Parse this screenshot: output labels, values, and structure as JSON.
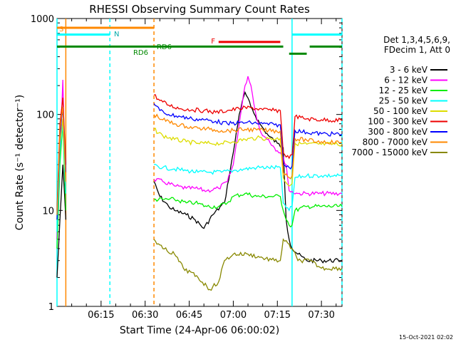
{
  "chart_data": {
    "type": "line",
    "title": "RHESSI Observing Summary Count Rates",
    "xlabel": "Start Time (24-Apr-06 06:00:02)",
    "ylabel": "Count Rate (s⁻¹ detector⁻¹)",
    "y_scale": "log",
    "ylim": [
      1,
      1000
    ],
    "xlim": [
      "06:00",
      "07:37"
    ],
    "x_ticks": [
      "06:15",
      "06:30",
      "06:45",
      "07:00",
      "07:15",
      "07:30"
    ],
    "y_ticks": [
      "1",
      "10",
      "100",
      "1000"
    ],
    "timestamp": "15-Oct-2021 02:02",
    "legend": {
      "placement": "right",
      "header": [
        "Det 1,3,4,5,6,9,",
        "FDecim 1, Att 0"
      ],
      "entries": [
        {
          "label": "3 - 6 keV",
          "color": "#000000"
        },
        {
          "label": "6 - 12 keV",
          "color": "#ff00ff"
        },
        {
          "label": "12 - 25 keV",
          "color": "#00ee00"
        },
        {
          "label": "25 - 50 keV",
          "color": "#00ffff"
        },
        {
          "label": "50 - 100 keV",
          "color": "#dddd00"
        },
        {
          "label": "100 - 300 keV",
          "color": "#ee0000"
        },
        {
          "label": "300 - 800 keV",
          "color": "#0000ff"
        },
        {
          "label": "800 - 7000 keV",
          "color": "#ff8800"
        },
        {
          "label": "7000 - 15000 keV",
          "color": "#888800"
        }
      ]
    },
    "flags": [
      {
        "label": "S",
        "color": "#ff8800",
        "start": "06:00",
        "end": "06:33",
        "level": 800
      },
      {
        "label": "N",
        "color": "#00ffff",
        "start": "06:00",
        "end": "06:18",
        "level": 680
      },
      {
        "label": "N",
        "color": "#00ffff",
        "start": "07:20",
        "end": "07:37",
        "level": 680
      },
      {
        "label": "F",
        "color": "#ee0000",
        "start": "06:55",
        "end": "07:16",
        "level": 570
      },
      {
        "label": "RD6",
        "color": "#008800",
        "start": "06:00",
        "end": "07:17",
        "level": 510
      },
      {
        "label": "",
        "color": "#008800",
        "start": "07:19",
        "end": "07:25",
        "level": 430
      },
      {
        "label": "",
        "color": "#008800",
        "start": "07:26",
        "end": "07:37",
        "level": 510
      }
    ],
    "flag_text": [
      "S",
      "N",
      "F",
      "RD6",
      "RD6"
    ],
    "vlines": [
      {
        "t": "06:00",
        "color": "#00ffff",
        "style": "solid"
      },
      {
        "t": "06:03",
        "color": "#ff8800",
        "style": "solid"
      },
      {
        "t": "06:18",
        "color": "#00ffff",
        "style": "dashed"
      },
      {
        "t": "06:33",
        "color": "#ff8800",
        "style": "dashed"
      },
      {
        "t": "07:20",
        "color": "#00ffff",
        "style": "solid"
      },
      {
        "t": "07:37",
        "color": "#00ffff",
        "style": "dashed"
      }
    ],
    "series": [
      {
        "name": "3 - 6 keV",
        "color": "#000000",
        "points": [
          [
            "06:00",
            2
          ],
          [
            "06:01",
            8
          ],
          [
            "06:02",
            30
          ],
          [
            "06:03",
            8
          ],
          [
            "06:33",
            null
          ],
          [
            "06:33",
            20
          ],
          [
            "06:35",
            14
          ],
          [
            "06:38",
            11
          ],
          [
            "06:40",
            10
          ],
          [
            "06:44",
            9
          ],
          [
            "06:47",
            8
          ],
          [
            "06:50",
            6.5
          ],
          [
            "06:53",
            9
          ],
          [
            "06:57",
            12
          ],
          [
            "07:00",
            40
          ],
          [
            "07:02",
            100
          ],
          [
            "07:04",
            170
          ],
          [
            "07:06",
            120
          ],
          [
            "07:09",
            80
          ],
          [
            "07:12",
            60
          ],
          [
            "07:15",
            50
          ],
          [
            "07:17",
            45
          ],
          [
            "07:18",
            8
          ],
          [
            "07:19",
            5
          ],
          [
            "07:20",
            4
          ],
          [
            "07:22",
            3.5
          ],
          [
            "07:25",
            3
          ],
          [
            "07:30",
            3
          ],
          [
            "07:37",
            3
          ]
        ]
      },
      {
        "name": "6 - 12 keV",
        "color": "#ff00ff",
        "points": [
          [
            "06:00",
            5
          ],
          [
            "06:01",
            40
          ],
          [
            "06:02",
            230
          ],
          [
            "06:03",
            10
          ],
          [
            "06:33",
            null
          ],
          [
            "06:33",
            21
          ],
          [
            "06:36",
            20
          ],
          [
            "06:40",
            18
          ],
          [
            "06:44",
            17
          ],
          [
            "06:47",
            17
          ],
          [
            "06:51",
            16
          ],
          [
            "06:55",
            17
          ],
          [
            "06:58",
            20
          ],
          [
            "07:00",
            30
          ],
          [
            "07:02",
            80
          ],
          [
            "07:04",
            200
          ],
          [
            "07:05",
            250
          ],
          [
            "07:06",
            200
          ],
          [
            "07:08",
            90
          ],
          [
            "07:10",
            60
          ],
          [
            "07:12",
            55
          ],
          [
            "07:14",
            45
          ],
          [
            "07:16",
            40
          ],
          [
            "07:18",
            30
          ],
          [
            "07:19",
            16
          ],
          [
            "07:22",
            15
          ],
          [
            "07:25",
            15
          ],
          [
            "07:30",
            15
          ],
          [
            "07:37",
            15
          ]
        ]
      },
      {
        "name": "12 - 25 keV",
        "color": "#00ee00",
        "points": [
          [
            "06:00",
            4
          ],
          [
            "06:01",
            30
          ],
          [
            "06:02",
            80
          ],
          [
            "06:03",
            10
          ],
          [
            "06:33",
            null
          ],
          [
            "06:33",
            13
          ],
          [
            "06:36",
            13
          ],
          [
            "06:40",
            13
          ],
          [
            "06:44",
            12
          ],
          [
            "06:47",
            12
          ],
          [
            "06:51",
            11
          ],
          [
            "06:55",
            11
          ],
          [
            "06:58",
            12
          ],
          [
            "07:00",
            14
          ],
          [
            "07:04",
            15
          ],
          [
            "07:08",
            14
          ],
          [
            "07:12",
            14
          ],
          [
            "07:16",
            14
          ],
          [
            "07:17",
            10
          ],
          [
            "07:19",
            7
          ],
          [
            "07:20",
            7
          ],
          [
            "07:21",
            10
          ],
          [
            "07:25",
            11
          ],
          [
            "07:30",
            11
          ],
          [
            "07:37",
            11
          ]
        ]
      },
      {
        "name": "25 - 50 keV",
        "color": "#00ffff",
        "points": [
          [
            "06:00",
            6
          ],
          [
            "06:01",
            40
          ],
          [
            "06:02",
            80
          ],
          [
            "06:03",
            15
          ],
          [
            "06:33",
            null
          ],
          [
            "06:33",
            30
          ],
          [
            "06:36",
            28
          ],
          [
            "06:40",
            27
          ],
          [
            "06:44",
            26
          ],
          [
            "06:48",
            25
          ],
          [
            "06:52",
            25
          ],
          [
            "06:56",
            25
          ],
          [
            "07:00",
            26
          ],
          [
            "07:04",
            27
          ],
          [
            "07:08",
            28
          ],
          [
            "07:12",
            28
          ],
          [
            "07:16",
            28
          ],
          [
            "07:17",
            12
          ],
          [
            "07:19",
            10
          ],
          [
            "07:20",
            11
          ],
          [
            "07:21",
            22
          ],
          [
            "07:25",
            23
          ],
          [
            "07:30",
            23
          ],
          [
            "07:37",
            23
          ]
        ]
      },
      {
        "name": "50 - 100 keV",
        "color": "#dddd00",
        "points": [
          [
            "06:00",
            8
          ],
          [
            "06:01",
            50
          ],
          [
            "06:02",
            90
          ],
          [
            "06:03",
            20
          ],
          [
            "06:33",
            null
          ],
          [
            "06:33",
            70
          ],
          [
            "06:36",
            60
          ],
          [
            "06:40",
            55
          ],
          [
            "06:44",
            52
          ],
          [
            "06:48",
            50
          ],
          [
            "06:52",
            50
          ],
          [
            "06:56",
            50
          ],
          [
            "07:00",
            52
          ],
          [
            "07:04",
            55
          ],
          [
            "07:08",
            57
          ],
          [
            "07:12",
            56
          ],
          [
            "07:16",
            56
          ],
          [
            "07:17",
            22
          ],
          [
            "07:19",
            18
          ],
          [
            "07:20",
            19
          ],
          [
            "07:21",
            50
          ],
          [
            "07:25",
            49
          ],
          [
            "07:30",
            49
          ],
          [
            "07:37",
            49
          ]
        ]
      },
      {
        "name": "100 - 300 keV",
        "color": "#ee0000",
        "points": [
          [
            "06:00",
            10
          ],
          [
            "06:01",
            80
          ],
          [
            "06:02",
            150
          ],
          [
            "06:03",
            30
          ],
          [
            "06:33",
            null
          ],
          [
            "06:33",
            160
          ],
          [
            "06:35",
            140
          ],
          [
            "06:38",
            125
          ],
          [
            "06:42",
            115
          ],
          [
            "06:46",
            112
          ],
          [
            "06:50",
            110
          ],
          [
            "06:54",
            105
          ],
          [
            "06:58",
            110
          ],
          [
            "07:02",
            115
          ],
          [
            "07:06",
            118
          ],
          [
            "07:10",
            112
          ],
          [
            "07:14",
            110
          ],
          [
            "07:16",
            110
          ],
          [
            "07:17",
            40
          ],
          [
            "07:19",
            35
          ],
          [
            "07:20",
            38
          ],
          [
            "07:21",
            95
          ],
          [
            "07:25",
            90
          ],
          [
            "07:30",
            88
          ],
          [
            "07:37",
            87
          ]
        ]
      },
      {
        "name": "300 - 800 keV",
        "color": "#0000ff",
        "points": [
          [
            "06:00",
            8
          ],
          [
            "06:01",
            60
          ],
          [
            "06:02",
            120
          ],
          [
            "06:03",
            25
          ],
          [
            "06:33",
            null
          ],
          [
            "06:33",
            130
          ],
          [
            "06:35",
            110
          ],
          [
            "06:38",
            100
          ],
          [
            "06:42",
            95
          ],
          [
            "06:46",
            90
          ],
          [
            "06:50",
            88
          ],
          [
            "06:54",
            85
          ],
          [
            "06:58",
            80
          ],
          [
            "07:02",
            82
          ],
          [
            "07:06",
            82
          ],
          [
            "07:10",
            80
          ],
          [
            "07:14",
            78
          ],
          [
            "07:16",
            78
          ],
          [
            "07:17",
            30
          ],
          [
            "07:19",
            28
          ],
          [
            "07:20",
            29
          ],
          [
            "07:21",
            68
          ],
          [
            "07:25",
            65
          ],
          [
            "07:30",
            63
          ],
          [
            "07:37",
            62
          ]
        ]
      },
      {
        "name": "800 - 7000 keV",
        "color": "#ff8800",
        "points": [
          [
            "06:00",
            9
          ],
          [
            "06:01",
            70
          ],
          [
            "06:02",
            120
          ],
          [
            "06:03",
            20
          ],
          [
            "06:33",
            null
          ],
          [
            "06:33",
            100
          ],
          [
            "06:36",
            88
          ],
          [
            "06:40",
            80
          ],
          [
            "06:44",
            75
          ],
          [
            "06:48",
            72
          ],
          [
            "06:52",
            70
          ],
          [
            "06:56",
            68
          ],
          [
            "07:00",
            68
          ],
          [
            "07:04",
            70
          ],
          [
            "07:08",
            69
          ],
          [
            "07:12",
            68
          ],
          [
            "07:16",
            67
          ],
          [
            "07:17",
            25
          ],
          [
            "07:19",
            22
          ],
          [
            "07:20",
            23
          ],
          [
            "07:21",
            56
          ],
          [
            "07:25",
            54
          ],
          [
            "07:30",
            52
          ],
          [
            "07:37",
            51
          ]
        ]
      },
      {
        "name": "7000 - 15000 keV",
        "color": "#888800",
        "points": [
          [
            "06:33",
            5
          ],
          [
            "06:36",
            4
          ],
          [
            "06:40",
            3.5
          ],
          [
            "06:43",
            2.5
          ],
          [
            "06:48",
            2
          ],
          [
            "06:52",
            1.5
          ],
          [
            "06:55",
            1.8
          ],
          [
            "06:57",
            3
          ],
          [
            "07:00",
            3.5
          ],
          [
            "07:05",
            3.5
          ],
          [
            "07:10",
            3.2
          ],
          [
            "07:14",
            3
          ],
          [
            "07:16",
            3
          ],
          [
            "07:17",
            5
          ],
          [
            "07:20",
            4
          ],
          [
            "07:22",
            3
          ],
          [
            "07:26",
            3
          ],
          [
            "07:30",
            2.5
          ],
          [
            "07:37",
            2.5
          ]
        ]
      }
    ]
  }
}
